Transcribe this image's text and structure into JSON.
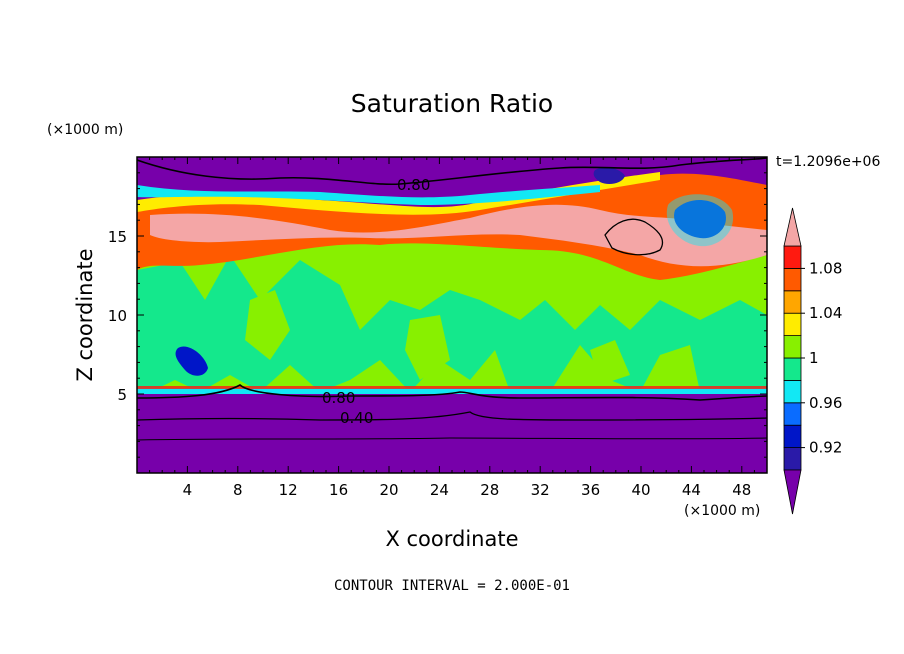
{
  "chart_data": {
    "type": "heatmap",
    "title": "Saturation Ratio",
    "xlabel": "X coordinate",
    "ylabel": "Z coordinate",
    "x_unit": "(×1000 m)",
    "y_unit": "(×1000 m)",
    "time_label": "t=1.2096e+06",
    "footer": "CONTOUR INTERVAL = 2.000E-01",
    "xlim": [
      0,
      50
    ],
    "ylim": [
      0,
      20
    ],
    "x_ticks": [
      "4",
      "8",
      "12",
      "16",
      "20",
      "24",
      "28",
      "32",
      "36",
      "40",
      "44",
      "48"
    ],
    "y_ticks": [
      "5",
      "10",
      "15"
    ],
    "colorbar": {
      "labels": [
        "1.08",
        "1.04",
        "1",
        "0.96",
        "0.92"
      ],
      "levels": [
        0.9,
        0.92,
        0.94,
        0.96,
        0.98,
        1.0,
        1.02,
        1.04,
        1.06,
        1.08,
        1.1
      ],
      "colors": [
        "#7700aa",
        "#2a1aa8",
        "#0016c8",
        "#0a6cff",
        "#12e8f4",
        "#14e88c",
        "#88f000",
        "#ffec00",
        "#ffa600",
        "#ff5a00",
        "#ff1a10",
        "#f4a6a6"
      ]
    },
    "contour_labels": [
      "0.80",
      "0.80",
      "0.40"
    ],
    "layers": [
      {
        "from_z": 0,
        "to_z": 4.8,
        "value": "<0.9",
        "color": "#7700aa"
      },
      {
        "from_z": 4.8,
        "to_z": 5.3,
        "value": "0.96-1.02",
        "color": "#12e8f4"
      },
      {
        "from_z": 5.3,
        "to_z": 14.5,
        "value": "0.98-1.02",
        "color": "#88f000"
      },
      {
        "from_z": 14.5,
        "to_z": 17.8,
        "value": ">1.04",
        "color": "#ff5a00"
      },
      {
        "from_z": 17.8,
        "to_z": 20,
        "value": "<0.9",
        "color": "#7700aa"
      }
    ]
  }
}
